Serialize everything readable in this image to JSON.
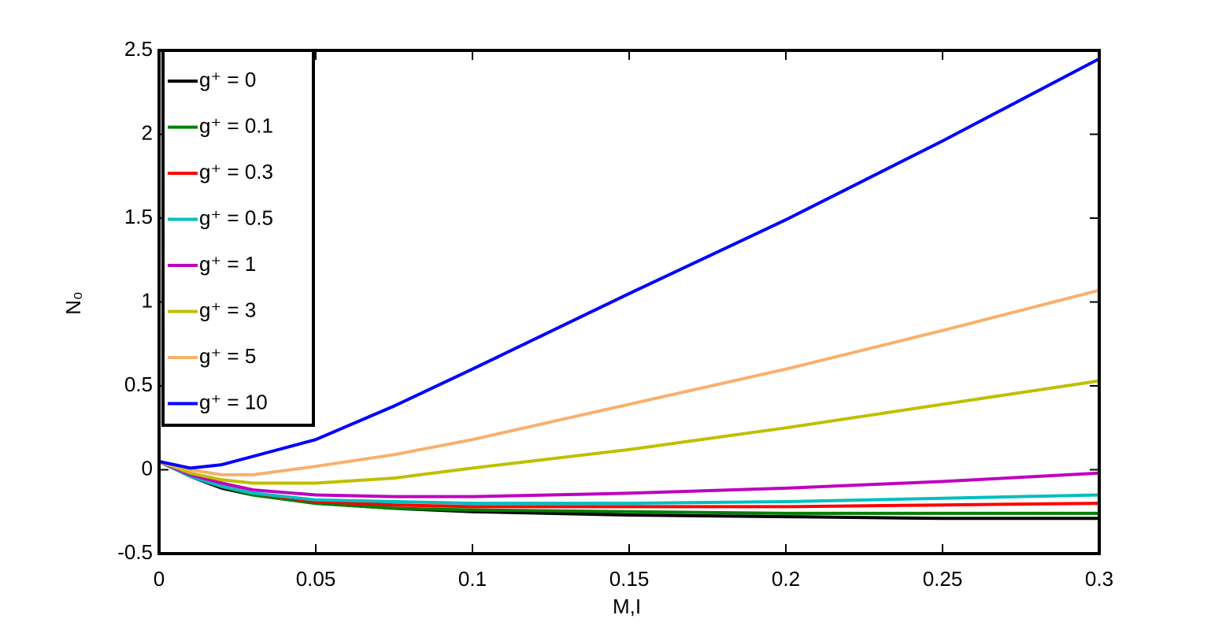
{
  "chart_data": {
    "type": "line",
    "xlabel": "M,I",
    "ylabel": "N₀",
    "x": [
      0,
      0.01,
      0.02,
      0.03,
      0.05,
      0.075,
      0.1,
      0.15,
      0.2,
      0.25,
      0.3
    ],
    "series": [
      {
        "name": "g⁺ = 0",
        "color": "#000000",
        "values": [
          0.05,
          -0.04,
          -0.11,
          -0.15,
          -0.2,
          -0.23,
          -0.25,
          -0.27,
          -0.28,
          -0.29,
          -0.29
        ]
      },
      {
        "name": "g⁺ = 0.1",
        "color": "#008000",
        "values": [
          0.05,
          -0.04,
          -0.1,
          -0.15,
          -0.2,
          -0.23,
          -0.24,
          -0.25,
          -0.26,
          -0.26,
          -0.26
        ]
      },
      {
        "name": "g⁺ = 0.3",
        "color": "#ff0000",
        "values": [
          0.05,
          -0.04,
          -0.1,
          -0.14,
          -0.19,
          -0.21,
          -0.22,
          -0.22,
          -0.22,
          -0.21,
          -0.2
        ]
      },
      {
        "name": "g⁺ = 0.5",
        "color": "#00bfbf",
        "values": [
          0.05,
          -0.04,
          -0.1,
          -0.14,
          -0.18,
          -0.19,
          -0.2,
          -0.2,
          -0.19,
          -0.17,
          -0.15
        ]
      },
      {
        "name": "g⁺ = 1",
        "color": "#bf00bf",
        "values": [
          0.05,
          -0.03,
          -0.08,
          -0.12,
          -0.15,
          -0.16,
          -0.16,
          -0.14,
          -0.11,
          -0.07,
          -0.02
        ]
      },
      {
        "name": "g⁺ = 3",
        "color": "#bfbf00",
        "values": [
          0.05,
          -0.02,
          -0.06,
          -0.08,
          -0.08,
          -0.05,
          0.01,
          0.12,
          0.25,
          0.39,
          0.53
        ]
      },
      {
        "name": "g⁺ = 5",
        "color": "#f8b06c",
        "values": [
          0.05,
          0.0,
          -0.03,
          -0.03,
          0.02,
          0.09,
          0.18,
          0.39,
          0.6,
          0.83,
          1.07
        ]
      },
      {
        "name": "g⁺ = 10",
        "color": "#0000ff",
        "values": [
          0.05,
          0.01,
          0.03,
          0.08,
          0.18,
          0.38,
          0.6,
          1.05,
          1.49,
          1.96,
          2.45
        ]
      }
    ],
    "xlim": [
      0,
      0.3
    ],
    "xticks": [
      0,
      0.05,
      0.1,
      0.15,
      0.2,
      0.25,
      0.3
    ],
    "ylim": [
      -0.5,
      2.5
    ],
    "yticks": [
      -0.5,
      0,
      0.5,
      1,
      1.5,
      2,
      2.5
    ],
    "grid": false,
    "legend": "upper-left"
  }
}
